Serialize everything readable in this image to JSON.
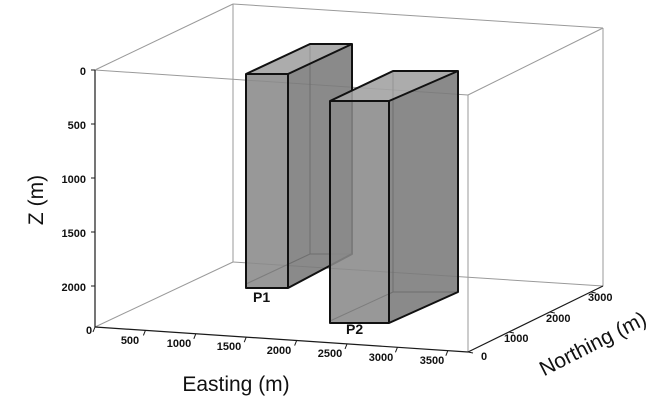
{
  "chart_data": {
    "type": "3d-box",
    "axes": {
      "x": {
        "label": "Easting (m)",
        "ticks": [
          "0",
          "500",
          "1000",
          "1500",
          "2000",
          "2500",
          "3000",
          "3500"
        ]
      },
      "y": {
        "label": "Northing (m)",
        "ticks": [
          "0",
          "1000",
          "2000",
          "3000"
        ]
      },
      "z": {
        "label": "Z (m)",
        "ticks": [
          "0",
          "500",
          "1000",
          "1500",
          "2000"
        ],
        "inverted": true
      }
    },
    "bodies": [
      {
        "name": "P1"
      },
      {
        "name": "P2"
      }
    ],
    "colors": {
      "prism_fill": "#8c8c8c",
      "prism_edge": "#111111",
      "bounding_box": "#9a9a9a"
    }
  }
}
